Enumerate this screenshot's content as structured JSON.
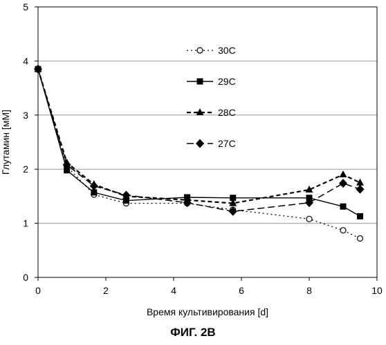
{
  "figure": {
    "caption": "ФИГ. 2B"
  },
  "chart_data": {
    "type": "line",
    "xlabel": "Время культивирования [d]",
    "ylabel": "Глутамин [мМ]",
    "xlim": [
      0,
      10
    ],
    "ylim": [
      0,
      5
    ],
    "xticks": [
      0,
      2,
      4,
      6,
      8,
      10
    ],
    "yticks": [
      0,
      1,
      2,
      3,
      4,
      5
    ],
    "grid": "horizontal",
    "legend": "upper-middle",
    "series": [
      {
        "name": "30C",
        "marker": "open-circle",
        "line": "dotted",
        "x": [
          0,
          0.85,
          1.65,
          2.6,
          4.4,
          5.75,
          8.0,
          9.0,
          9.5
        ],
        "y": [
          3.85,
          2.05,
          1.53,
          1.37,
          1.37,
          1.25,
          1.08,
          0.87,
          0.72
        ]
      },
      {
        "name": "29C",
        "marker": "filled-square",
        "line": "solid",
        "x": [
          0,
          0.85,
          1.65,
          2.6,
          4.4,
          5.75,
          8.0,
          9.0,
          9.5
        ],
        "y": [
          3.85,
          1.98,
          1.57,
          1.42,
          1.48,
          1.47,
          1.47,
          1.31,
          1.13
        ]
      },
      {
        "name": "28C",
        "marker": "filled-triangle",
        "line": "dashed",
        "x": [
          0,
          0.85,
          1.65,
          2.6,
          4.4,
          5.75,
          8.0,
          9.0,
          9.5
        ],
        "y": [
          3.85,
          2.12,
          1.72,
          1.5,
          1.43,
          1.37,
          1.62,
          1.9,
          1.75
        ]
      },
      {
        "name": "27C",
        "marker": "filled-diamond",
        "line": "long-dash",
        "x": [
          0,
          0.85,
          1.65,
          2.6,
          4.4,
          5.75,
          8.0,
          9.0,
          9.5
        ],
        "y": [
          3.85,
          2.08,
          1.69,
          1.52,
          1.38,
          1.22,
          1.38,
          1.74,
          1.63
        ]
      }
    ]
  }
}
